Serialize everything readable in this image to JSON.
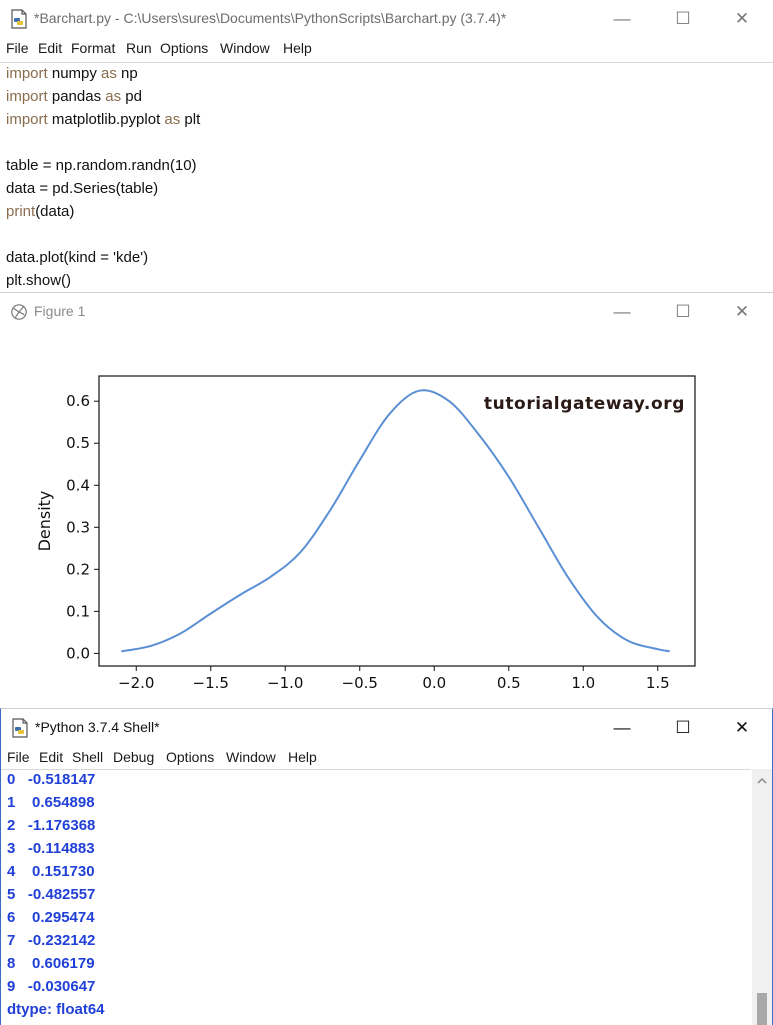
{
  "editor": {
    "title": "*Barchart.py - C:\\Users\\sures\\Documents\\PythonScripts\\Barchart.py (3.7.4)*",
    "menu": [
      "File",
      "Edit",
      "Format",
      "Run",
      "Options",
      "Window",
      "Help"
    ],
    "code": {
      "l1": {
        "kw1": "import",
        "mod": " numpy ",
        "kw2": "as",
        "alias": " np"
      },
      "l2": {
        "kw1": "import",
        "mod": " pandas ",
        "kw2": "as",
        "alias": " pd"
      },
      "l3": {
        "kw1": "import",
        "mod": " matplotlib.pyplot ",
        "kw2": "as",
        "alias": " plt"
      },
      "l5": "table = np.random.randn(10)",
      "l6": "data = pd.Series(table)",
      "l7": {
        "builtin": "print",
        "rest": "(data)"
      },
      "l9": "data.plot(kind = 'kde')",
      "l10": "plt.show()"
    }
  },
  "figure": {
    "title": "Figure 1",
    "watermark": "tutorialgateway.org"
  },
  "chart_data": {
    "type": "line",
    "title": "",
    "xlabel": "",
    "ylabel": "Density",
    "xlim": [
      -2.25,
      1.75
    ],
    "ylim": [
      -0.03,
      0.66
    ],
    "xticks": [
      "−2.0",
      "−1.5",
      "−1.0",
      "−0.5",
      "0.0",
      "0.5",
      "1.0",
      "1.5"
    ],
    "xtick_values": [
      -2.0,
      -1.5,
      -1.0,
      -0.5,
      0.0,
      0.5,
      1.0,
      1.5
    ],
    "yticks": [
      "0.0",
      "0.1",
      "0.2",
      "0.3",
      "0.4",
      "0.5",
      "0.6"
    ],
    "ytick_values": [
      0.0,
      0.1,
      0.2,
      0.3,
      0.4,
      0.5,
      0.6
    ],
    "line_color": "#5b8fd4",
    "x": [
      -2.1,
      -1.9,
      -1.7,
      -1.5,
      -1.3,
      -1.1,
      -0.9,
      -0.7,
      -0.5,
      -0.3,
      -0.1,
      0.1,
      0.3,
      0.5,
      0.7,
      0.9,
      1.1,
      1.3,
      1.5,
      1.58
    ],
    "y": [
      0.005,
      0.018,
      0.048,
      0.095,
      0.14,
      0.182,
      0.24,
      0.34,
      0.46,
      0.57,
      0.625,
      0.6,
      0.52,
      0.42,
      0.3,
      0.18,
      0.085,
      0.03,
      0.01,
      0.005
    ]
  },
  "shell": {
    "title": "*Python 3.7.4 Shell*",
    "menu": [
      "File",
      "Edit",
      "Shell",
      "Debug",
      "Options",
      "Window",
      "Help"
    ],
    "output": [
      "0   -0.518147",
      "1    0.654898",
      "2   -1.176368",
      "3   -0.114883",
      "4    0.151730",
      "5   -0.482557",
      "6    0.295474",
      "7   -0.232142",
      "8    0.606179",
      "9   -0.030647",
      "dtype: float64"
    ]
  },
  "window_controls": {
    "minimize": "—",
    "maximize": "☐",
    "close": "✕"
  }
}
